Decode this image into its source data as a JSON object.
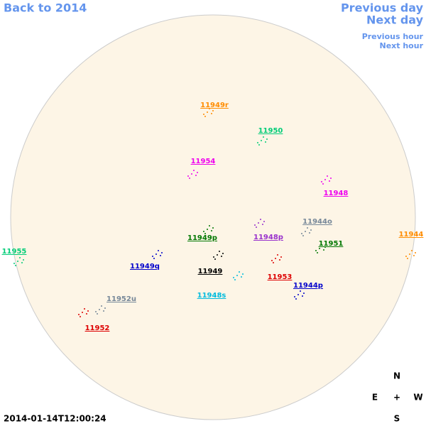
{
  "navigation": {
    "back": "Back to 2014",
    "previous_day": "Previous day",
    "next_day": "Next day",
    "previous_hour": "Previous hour",
    "next_hour": "Next hour"
  },
  "timestamp": "2014-01-14T12:00:24",
  "compass": {
    "north": "N",
    "east": "E",
    "center": "+",
    "west": "W",
    "south": "S"
  },
  "regions": [
    {
      "label": "11949r",
      "color": "#ff8c00"
    },
    {
      "label": "11950",
      "color": "#00cc77"
    },
    {
      "label": "11954",
      "color": "#ee00ee"
    },
    {
      "label": "11948",
      "color": "#ee00ee"
    },
    {
      "label": "11944o",
      "color": "#778899"
    },
    {
      "label": "11944",
      "color": "#ff8c00"
    },
    {
      "label": "11955",
      "color": "#00cc77"
    },
    {
      "label": "11949p",
      "color": "#007700"
    },
    {
      "label": "11948p",
      "color": "#9932cc"
    },
    {
      "label": "11951",
      "color": "#007700"
    },
    {
      "label": "11949q",
      "color": "#0000cc"
    },
    {
      "label": "11949",
      "color": "#000000"
    },
    {
      "label": "11953",
      "color": "#dd0000"
    },
    {
      "label": "11944p",
      "color": "#0000cc"
    },
    {
      "label": "11948s",
      "color": "#00bbdd"
    },
    {
      "label": "11952u",
      "color": "#778899"
    },
    {
      "label": "11952",
      "color": "#dd0000"
    }
  ]
}
